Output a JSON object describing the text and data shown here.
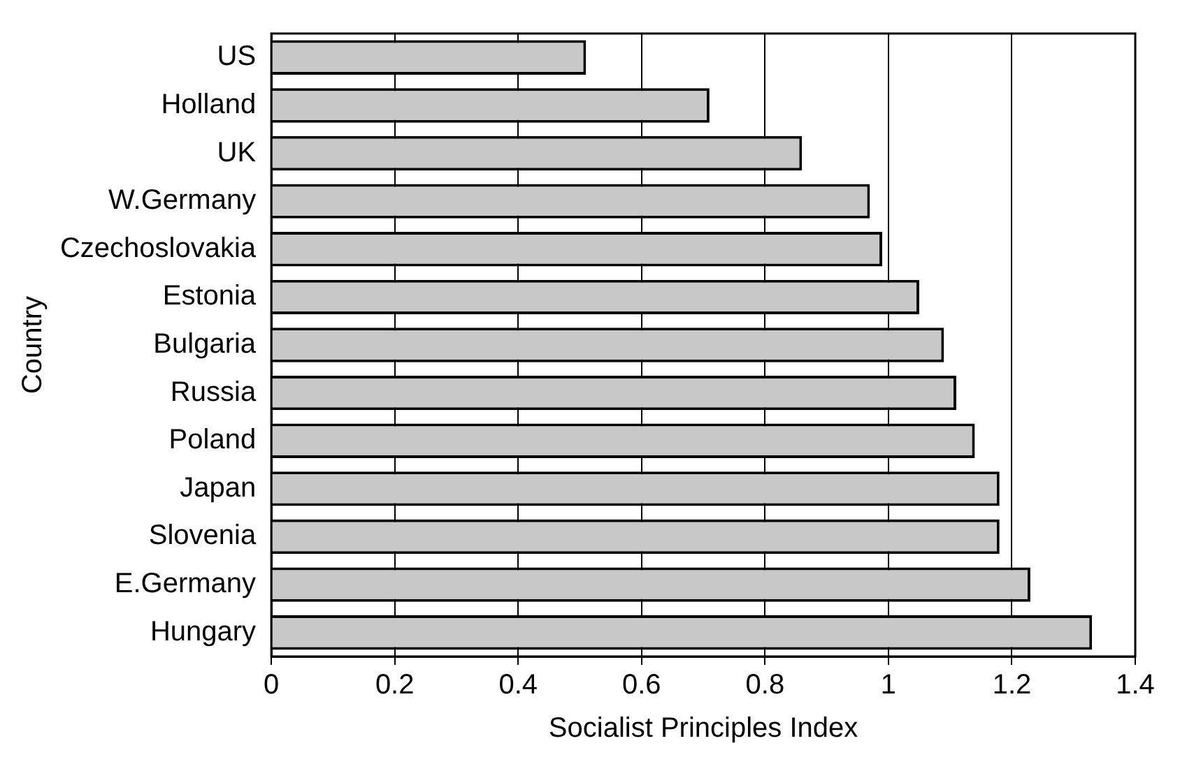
{
  "chart_data": {
    "type": "bar",
    "orientation": "horizontal",
    "xlabel": "Socialist Principles Index",
    "ylabel": "Country",
    "categories": [
      "US",
      "Holland",
      "UK",
      "W.Germany",
      "Czechoslovakia",
      "Estonia",
      "Bulgaria",
      "Russia",
      "Poland",
      "Japan",
      "Slovenia",
      "E.Germany",
      "Hungary"
    ],
    "values": [
      0.51,
      0.71,
      0.86,
      0.97,
      0.99,
      1.05,
      1.09,
      1.11,
      1.14,
      1.18,
      1.18,
      1.23,
      1.33
    ],
    "color": "#c8c8c8",
    "xlim": [
      0,
      1.4
    ],
    "xticks": [
      0,
      0.2,
      0.4,
      0.6,
      0.8,
      1,
      1.2,
      1.4
    ],
    "grid": "x"
  }
}
